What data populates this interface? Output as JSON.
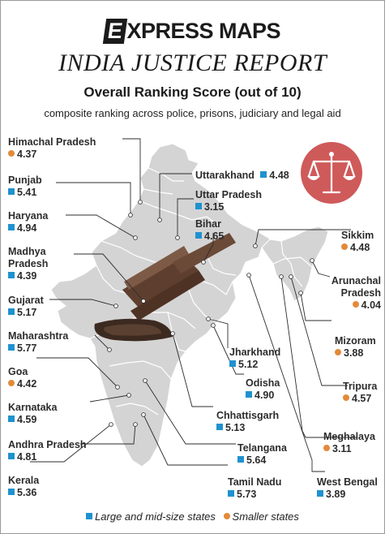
{
  "header": {
    "brand_prefix": "E",
    "brand_rest": "XPRESS MAPS",
    "report_title": "INDIA JUSTICE REPORT",
    "subtitle": "Overall Ranking Score (out of 10)",
    "description": "composite ranking across police, prisons, judiciary and legal aid"
  },
  "colors": {
    "large_states": "#1f92cf",
    "smaller_states": "#e38a3a",
    "map_fill": "#d4d4d4",
    "map_stroke": "#ffffff",
    "gavel": "#6b4a38",
    "scales_bg": "#cf5a5a"
  },
  "states": [
    {
      "key": "himachal",
      "name": "Himachal Pradesh",
      "value": "4.37",
      "type": "smaller"
    },
    {
      "key": "punjab",
      "name": "Punjab",
      "value": "5.41",
      "type": "large"
    },
    {
      "key": "haryana",
      "name": "Haryana",
      "value": "4.94",
      "type": "large"
    },
    {
      "key": "mp",
      "name": "Madhya Pradesh",
      "value": "4.39",
      "type": "large"
    },
    {
      "key": "gujarat",
      "name": "Gujarat",
      "value": "5.17",
      "type": "large"
    },
    {
      "key": "maharashtra",
      "name": "Maharashtra",
      "value": "5.77",
      "type": "large"
    },
    {
      "key": "goa",
      "name": "Goa",
      "value": "4.42",
      "type": "smaller"
    },
    {
      "key": "karnataka",
      "name": "Karnataka",
      "value": "4.59",
      "type": "large"
    },
    {
      "key": "andhra",
      "name": "Andhra Pradesh",
      "value": "4.81",
      "type": "large"
    },
    {
      "key": "kerala",
      "name": "Kerala",
      "value": "5.36",
      "type": "large"
    },
    {
      "key": "uttarakhand",
      "name": "Uttarakhand",
      "value": "4.48",
      "type": "large"
    },
    {
      "key": "up",
      "name": "Uttar Pradesh",
      "value": "3.15",
      "type": "large"
    },
    {
      "key": "bihar",
      "name": "Bihar",
      "value": "4.65",
      "type": "large"
    },
    {
      "key": "sikkim",
      "name": "Sikkim",
      "value": "4.48",
      "type": "smaller"
    },
    {
      "key": "arunachal",
      "name": "Arunachal Pradesh",
      "value": "4.04",
      "type": "smaller"
    },
    {
      "key": "mizoram",
      "name": "Mizoram",
      "value": "3.88",
      "type": "smaller"
    },
    {
      "key": "tripura",
      "name": "Tripura",
      "value": "4.57",
      "type": "smaller"
    },
    {
      "key": "meghalaya",
      "name": "Meghalaya",
      "value": "3.11",
      "type": "smaller"
    },
    {
      "key": "westbengal",
      "name": "West Bengal",
      "value": "3.89",
      "type": "large"
    },
    {
      "key": "jharkhand",
      "name": "Jharkhand",
      "value": "5.12",
      "type": "large"
    },
    {
      "key": "odisha",
      "name": "Odisha",
      "value": "4.90",
      "type": "large"
    },
    {
      "key": "chhattisgarh",
      "name": "Chhattisgarh",
      "value": "5.13",
      "type": "large"
    },
    {
      "key": "telangana",
      "name": "Telangana",
      "value": "5.64",
      "type": "large"
    },
    {
      "key": "tamilnadu",
      "name": "Tamil Nadu",
      "value": "5.73",
      "type": "large"
    }
  ],
  "legend": {
    "large": "Large and mid-size states",
    "smaller": "Smaller states"
  }
}
